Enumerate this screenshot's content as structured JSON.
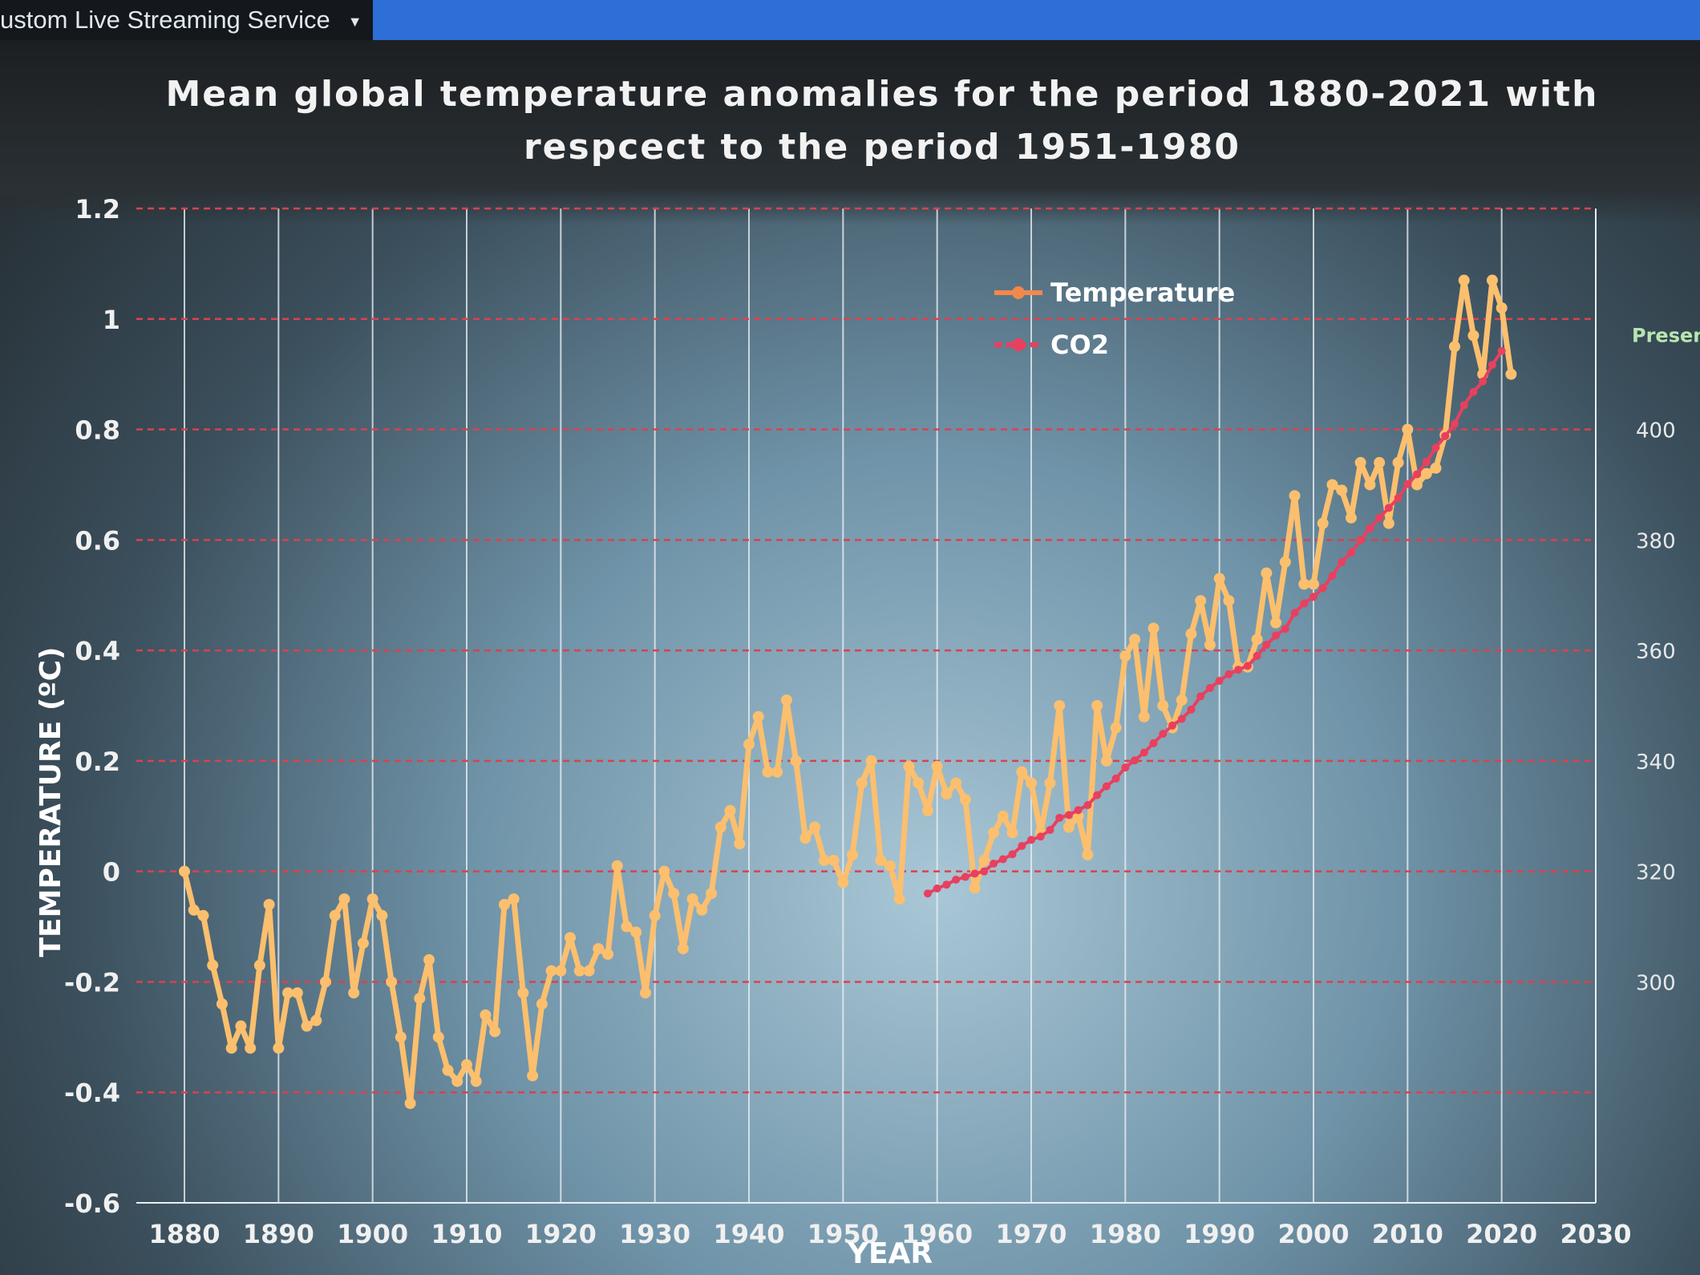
{
  "window": {
    "tab_label": "ustom Live Streaming Service",
    "tab_dropdown_icon": "triangle-down"
  },
  "colors": {
    "temperature": "#fbbf6e",
    "co2": "#e8405e",
    "grid_h": "#d9424e",
    "grid_v": "#e8eef2"
  },
  "chart_data": {
    "type": "line",
    "title": "Mean global temperature anomalies for the period 1880-2021 with respcect to the period  1951-1980",
    "xlabel": "YEAR",
    "ylabel": "TEMPERATURE (ºC)",
    "y2label": "Present",
    "xlim": [
      1880,
      2030
    ],
    "ylim": [
      -0.6,
      1.2
    ],
    "y2lim": [
      260,
      440
    ],
    "x_ticks": [
      1880,
      1890,
      1900,
      1910,
      1920,
      1930,
      1940,
      1950,
      1960,
      1970,
      1980,
      1990,
      2000,
      2010,
      2020,
      2030
    ],
    "y_ticks": [
      "-0.6",
      "-0.4",
      "-0.2",
      "0",
      "0.2",
      "0.4",
      "0.6",
      "0.8",
      "1",
      "1.2"
    ],
    "y2_ticks": [
      "300",
      "320",
      "340",
      "360",
      "380",
      "400"
    ],
    "grid": true,
    "legend": {
      "placement": "top-center",
      "entries": [
        "Temperature",
        "CO2"
      ]
    },
    "series": [
      {
        "name": "Temperature",
        "axis": "left",
        "x_start": 1880,
        "values": [
          0.0,
          -0.07,
          -0.08,
          -0.17,
          -0.24,
          -0.32,
          -0.28,
          -0.32,
          -0.17,
          -0.06,
          -0.32,
          -0.22,
          -0.22,
          -0.28,
          -0.27,
          -0.2,
          -0.08,
          -0.05,
          -0.22,
          -0.13,
          -0.05,
          -0.08,
          -0.2,
          -0.3,
          -0.42,
          -0.23,
          -0.16,
          -0.3,
          -0.36,
          -0.38,
          -0.35,
          -0.38,
          -0.26,
          -0.29,
          -0.06,
          -0.05,
          -0.22,
          -0.37,
          -0.24,
          -0.18,
          -0.18,
          -0.12,
          -0.18,
          -0.18,
          -0.14,
          -0.15,
          0.01,
          -0.1,
          -0.11,
          -0.22,
          -0.08,
          0.0,
          -0.04,
          -0.14,
          -0.05,
          -0.07,
          -0.04,
          0.08,
          0.11,
          0.05,
          0.23,
          0.28,
          0.18,
          0.18,
          0.31,
          0.2,
          0.06,
          0.08,
          0.02,
          0.02,
          -0.02,
          0.03,
          0.16,
          0.2,
          0.02,
          0.01,
          -0.05,
          0.19,
          0.16,
          0.11,
          0.19,
          0.14,
          0.16,
          0.13,
          -0.03,
          0.02,
          0.07,
          0.1,
          0.07,
          0.18,
          0.16,
          0.07,
          0.16,
          0.3,
          0.08,
          0.1,
          0.03,
          0.3,
          0.2,
          0.26,
          0.39,
          0.42,
          0.28,
          0.44,
          0.3,
          0.26,
          0.31,
          0.43,
          0.49,
          0.41,
          0.53,
          0.49,
          0.37,
          0.37,
          0.42,
          0.54,
          0.45,
          0.56,
          0.68,
          0.52,
          0.52,
          0.63,
          0.7,
          0.69,
          0.64,
          0.74,
          0.7,
          0.74,
          0.63,
          0.74,
          0.8,
          0.7,
          0.72,
          0.73,
          0.79,
          0.95,
          1.07,
          0.97,
          0.9,
          1.07,
          1.02,
          0.9
        ]
      },
      {
        "name": "CO2",
        "axis": "right",
        "x_start": 1959,
        "values": [
          316.0,
          316.9,
          317.6,
          318.5,
          319.0,
          319.6,
          320.0,
          321.4,
          322.2,
          323.1,
          324.6,
          325.7,
          326.3,
          327.5,
          329.7,
          330.2,
          331.1,
          332.0,
          333.8,
          335.4,
          336.8,
          338.8,
          340.1,
          341.5,
          343.2,
          344.9,
          346.4,
          347.6,
          349.3,
          351.7,
          353.2,
          354.5,
          355.7,
          356.5,
          357.2,
          359.0,
          361.0,
          362.7,
          363.9,
          366.8,
          368.5,
          369.7,
          371.3,
          373.5,
          376.0,
          377.7,
          380.0,
          382.1,
          384.0,
          385.8,
          387.6,
          390.1,
          391.9,
          394.1,
          396.7,
          398.8,
          401.0,
          404.4,
          406.8,
          408.7,
          411.7,
          414.2
        ]
      }
    ]
  }
}
